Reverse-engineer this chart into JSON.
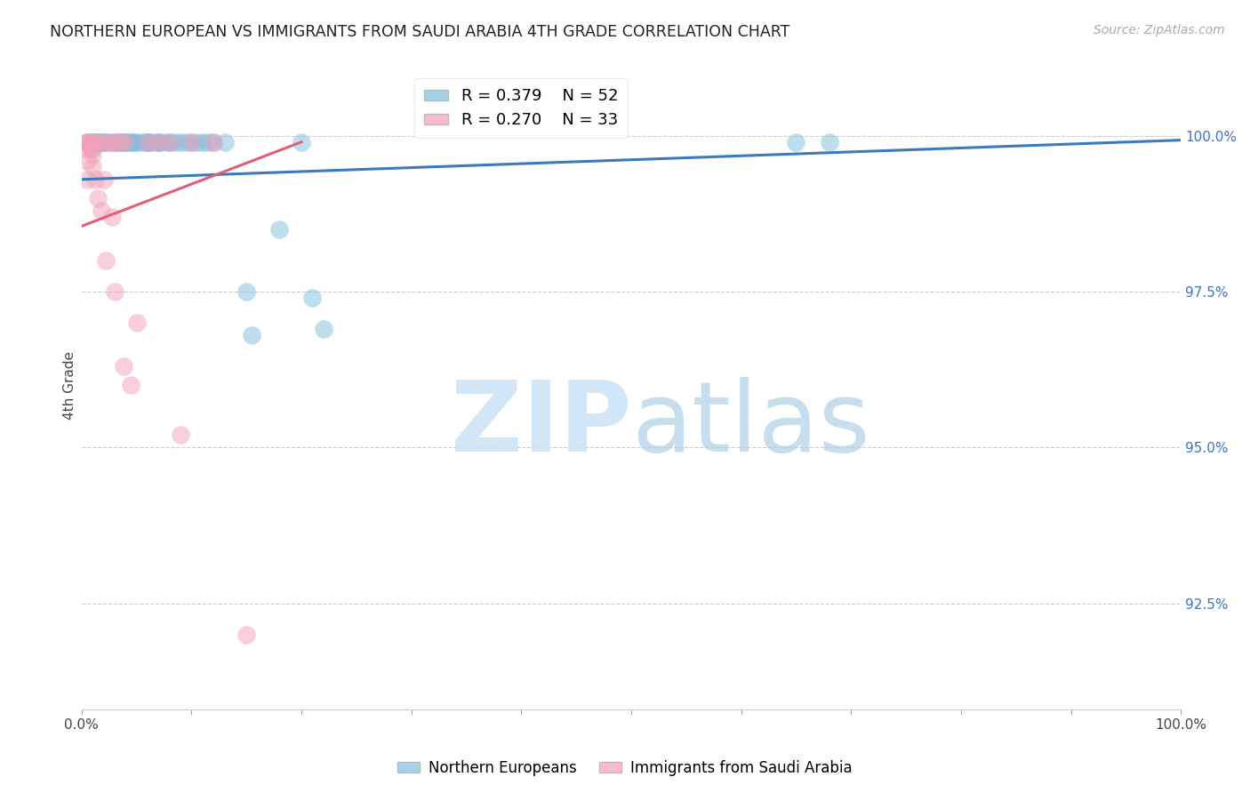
{
  "title": "NORTHERN EUROPEAN VS IMMIGRANTS FROM SAUDI ARABIA 4TH GRADE CORRELATION CHART",
  "source": "Source: ZipAtlas.com",
  "ylabel": "4th Grade",
  "x_min": 0.0,
  "x_max": 1.0,
  "y_min": 0.908,
  "y_max": 1.012,
  "x_ticks": [
    0.0,
    0.1,
    0.2,
    0.3,
    0.4,
    0.5,
    0.6,
    0.7,
    0.8,
    0.9,
    1.0
  ],
  "y_tick_labels_right": [
    "100.0%",
    "97.5%",
    "95.0%",
    "92.5%"
  ],
  "y_tick_positions_right": [
    1.0,
    0.975,
    0.95,
    0.925
  ],
  "legend_r1": "R = 0.379",
  "legend_n1": "N = 52",
  "legend_r2": "R = 0.270",
  "legend_n2": "N = 33",
  "legend_label1": "Northern Europeans",
  "legend_label2": "Immigrants from Saudi Arabia",
  "blue_color": "#7fbfdf",
  "pink_color": "#f4a0b8",
  "blue_line_color": "#3a7bbf",
  "pink_line_color": "#e0607a",
  "blue_x": [
    0.005,
    0.008,
    0.01,
    0.01,
    0.012,
    0.015,
    0.015,
    0.018,
    0.02,
    0.02,
    0.022,
    0.025,
    0.03,
    0.03,
    0.035,
    0.035,
    0.038,
    0.04,
    0.04,
    0.042,
    0.045,
    0.045,
    0.048,
    0.05,
    0.055,
    0.058,
    0.06,
    0.06,
    0.062,
    0.065,
    0.07,
    0.07,
    0.072,
    0.078,
    0.08,
    0.085,
    0.09,
    0.095,
    0.1,
    0.105,
    0.11,
    0.115,
    0.12,
    0.13,
    0.15,
    0.155,
    0.18,
    0.2,
    0.21,
    0.22,
    0.65,
    0.68
  ],
  "blue_y": [
    0.999,
    0.999,
    0.999,
    0.998,
    0.999,
    0.999,
    0.999,
    0.999,
    0.999,
    0.999,
    0.999,
    0.999,
    0.999,
    0.999,
    0.999,
    0.999,
    0.999,
    0.999,
    0.999,
    0.999,
    0.999,
    0.999,
    0.999,
    0.999,
    0.999,
    0.999,
    0.999,
    0.999,
    0.999,
    0.999,
    0.999,
    0.999,
    0.999,
    0.999,
    0.999,
    0.999,
    0.999,
    0.999,
    0.999,
    0.999,
    0.999,
    0.999,
    0.999,
    0.999,
    0.975,
    0.968,
    0.985,
    0.999,
    0.974,
    0.969,
    0.999,
    0.999
  ],
  "pink_x": [
    0.005,
    0.005,
    0.005,
    0.005,
    0.005,
    0.008,
    0.008,
    0.01,
    0.01,
    0.01,
    0.012,
    0.015,
    0.015,
    0.018,
    0.02,
    0.02,
    0.022,
    0.025,
    0.028,
    0.03,
    0.03,
    0.035,
    0.038,
    0.04,
    0.045,
    0.05,
    0.06,
    0.07,
    0.08,
    0.09,
    0.1,
    0.12,
    0.15
  ],
  "pink_y": [
    0.999,
    0.999,
    0.998,
    0.996,
    0.993,
    0.999,
    0.998,
    0.999,
    0.997,
    0.995,
    0.993,
    0.999,
    0.99,
    0.988,
    0.999,
    0.993,
    0.98,
    0.999,
    0.987,
    0.999,
    0.975,
    0.999,
    0.963,
    0.999,
    0.96,
    0.97,
    0.999,
    0.999,
    0.999,
    0.952,
    0.999,
    0.999,
    0.92
  ],
  "blue_trend_x": [
    0.0,
    1.0
  ],
  "blue_trend_y": [
    0.993,
    0.9993
  ],
  "pink_trend_x": [
    0.0,
    0.2
  ],
  "pink_trend_y": [
    0.9855,
    0.999
  ]
}
